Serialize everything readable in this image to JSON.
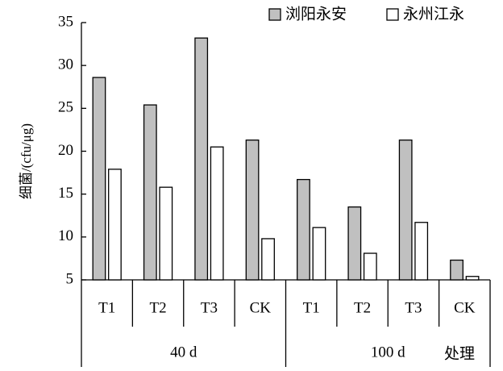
{
  "chart_data": {
    "type": "bar",
    "y_label": "细菌/(cfu/μg)",
    "x_label": "处理",
    "categories": [
      "T1",
      "T2",
      "T3",
      "CK",
      "T1",
      "T2",
      "T3",
      "CK"
    ],
    "group_labels": [
      "40 d",
      "100 d"
    ],
    "series": [
      {
        "name": "浏阳永安",
        "color": "#c0c0c0",
        "values": [
          28.6,
          25.4,
          33.2,
          21.3,
          16.7,
          13.5,
          21.3,
          7.3
        ]
      },
      {
        "name": "永州江永",
        "color": "#ffffff",
        "values": [
          17.9,
          15.8,
          20.5,
          9.8,
          11.1,
          8.1,
          11.7,
          5.4
        ]
      }
    ],
    "ylim": [
      5,
      35
    ],
    "yticks": [
      5,
      10,
      15,
      20,
      25,
      30,
      35
    ],
    "legend": "top-right"
  }
}
